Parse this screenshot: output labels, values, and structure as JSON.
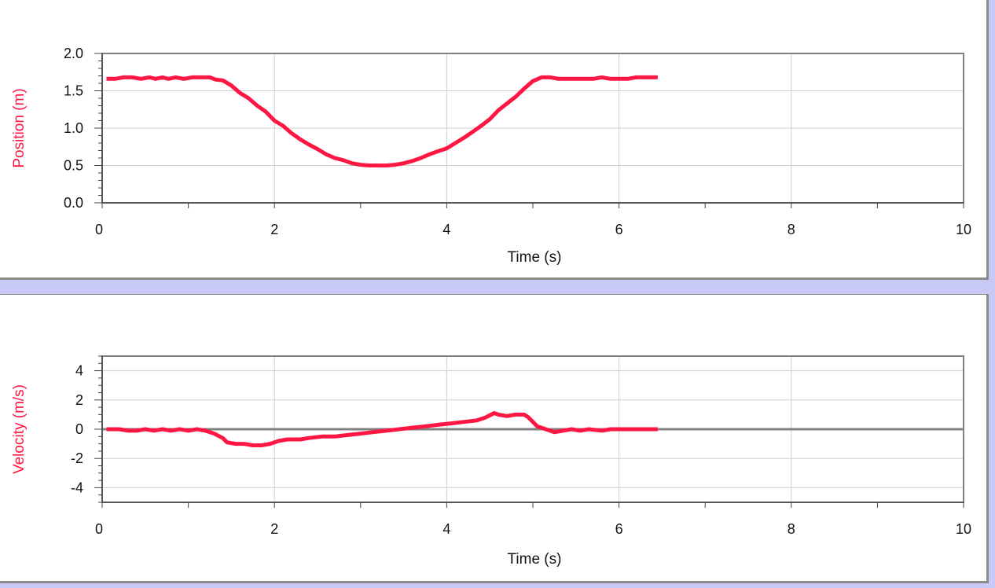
{
  "colors": {
    "series": "#ff1744",
    "grid": "#cfcfcf",
    "frame": "#808080",
    "background": "#c9c9f5"
  },
  "chart_data": [
    {
      "type": "line",
      "xlabel": "Time (s)",
      "ylabel": "Position (m)",
      "xlim": [
        0,
        10
      ],
      "ylim": [
        0,
        2
      ],
      "x_ticks": [
        "0",
        "2",
        "4",
        "6",
        "8",
        "10"
      ],
      "y_ticks": [
        "0.0",
        "0.5",
        "1.0",
        "1.5",
        "2.0"
      ],
      "grid": true,
      "series": [
        {
          "points": [
            [
              0.05,
              1.66
            ],
            [
              0.15,
              1.66
            ],
            [
              0.25,
              1.68
            ],
            [
              0.35,
              1.68
            ],
            [
              0.45,
              1.66
            ],
            [
              0.55,
              1.68
            ],
            [
              0.62,
              1.66
            ],
            [
              0.7,
              1.68
            ],
            [
              0.77,
              1.66
            ],
            [
              0.85,
              1.68
            ],
            [
              0.95,
              1.66
            ],
            [
              1.05,
              1.68
            ],
            [
              1.15,
              1.68
            ],
            [
              1.25,
              1.68
            ],
            [
              1.32,
              1.65
            ],
            [
              1.4,
              1.64
            ],
            [
              1.5,
              1.57
            ],
            [
              1.6,
              1.47
            ],
            [
              1.7,
              1.4
            ],
            [
              1.8,
              1.3
            ],
            [
              1.9,
              1.22
            ],
            [
              2.0,
              1.1
            ],
            [
              2.1,
              1.03
            ],
            [
              2.2,
              0.93
            ],
            [
              2.3,
              0.85
            ],
            [
              2.4,
              0.78
            ],
            [
              2.5,
              0.72
            ],
            [
              2.6,
              0.65
            ],
            [
              2.7,
              0.6
            ],
            [
              2.8,
              0.57
            ],
            [
              2.9,
              0.53
            ],
            [
              3.0,
              0.51
            ],
            [
              3.1,
              0.5
            ],
            [
              3.2,
              0.5
            ],
            [
              3.3,
              0.5
            ],
            [
              3.4,
              0.51
            ],
            [
              3.5,
              0.53
            ],
            [
              3.6,
              0.56
            ],
            [
              3.7,
              0.6
            ],
            [
              3.8,
              0.65
            ],
            [
              3.9,
              0.69
            ],
            [
              4.0,
              0.73
            ],
            [
              4.1,
              0.8
            ],
            [
              4.2,
              0.87
            ],
            [
              4.3,
              0.95
            ],
            [
              4.4,
              1.03
            ],
            [
              4.5,
              1.12
            ],
            [
              4.6,
              1.24
            ],
            [
              4.7,
              1.33
            ],
            [
              4.8,
              1.42
            ],
            [
              4.9,
              1.53
            ],
            [
              5.0,
              1.63
            ],
            [
              5.1,
              1.68
            ],
            [
              5.2,
              1.68
            ],
            [
              5.3,
              1.66
            ],
            [
              5.4,
              1.66
            ],
            [
              5.5,
              1.66
            ],
            [
              5.6,
              1.66
            ],
            [
              5.7,
              1.66
            ],
            [
              5.8,
              1.68
            ],
            [
              5.9,
              1.66
            ],
            [
              6.0,
              1.66
            ],
            [
              6.1,
              1.66
            ],
            [
              6.2,
              1.68
            ],
            [
              6.3,
              1.68
            ],
            [
              6.4,
              1.68
            ],
            [
              6.45,
              1.68
            ]
          ]
        }
      ]
    },
    {
      "type": "line",
      "xlabel": "Time (s)",
      "ylabel": "Velocity (m/s)",
      "xlim": [
        0,
        10
      ],
      "ylim": [
        -5,
        5
      ],
      "x_ticks": [
        "0",
        "2",
        "4",
        "6",
        "8",
        "10"
      ],
      "y_ticks": [
        "-4",
        "-2",
        "0",
        "2",
        "4"
      ],
      "grid": true,
      "series": [
        {
          "points": [
            [
              0.05,
              0.0
            ],
            [
              0.2,
              0.0
            ],
            [
              0.3,
              -0.1
            ],
            [
              0.4,
              -0.1
            ],
            [
              0.5,
              0.0
            ],
            [
              0.6,
              -0.1
            ],
            [
              0.7,
              0.0
            ],
            [
              0.8,
              -0.1
            ],
            [
              0.9,
              0.0
            ],
            [
              1.0,
              -0.1
            ],
            [
              1.1,
              0.0
            ],
            [
              1.2,
              -0.1
            ],
            [
              1.3,
              -0.3
            ],
            [
              1.4,
              -0.6
            ],
            [
              1.45,
              -0.9
            ],
            [
              1.55,
              -1.0
            ],
            [
              1.65,
              -1.0
            ],
            [
              1.75,
              -1.1
            ],
            [
              1.85,
              -1.1
            ],
            [
              1.95,
              -1.0
            ],
            [
              2.05,
              -0.8
            ],
            [
              2.15,
              -0.7
            ],
            [
              2.3,
              -0.7
            ],
            [
              2.4,
              -0.6
            ],
            [
              2.55,
              -0.5
            ],
            [
              2.7,
              -0.5
            ],
            [
              2.85,
              -0.4
            ],
            [
              3.0,
              -0.3
            ],
            [
              3.15,
              -0.2
            ],
            [
              3.3,
              -0.1
            ],
            [
              3.45,
              0.0
            ],
            [
              3.6,
              0.1
            ],
            [
              3.75,
              0.2
            ],
            [
              3.9,
              0.3
            ],
            [
              4.05,
              0.4
            ],
            [
              4.2,
              0.5
            ],
            [
              4.35,
              0.6
            ],
            [
              4.45,
              0.8
            ],
            [
              4.55,
              1.1
            ],
            [
              4.6,
              1.0
            ],
            [
              4.7,
              0.9
            ],
            [
              4.8,
              1.0
            ],
            [
              4.9,
              1.0
            ],
            [
              4.95,
              0.8
            ],
            [
              5.05,
              0.2
            ],
            [
              5.15,
              0.0
            ],
            [
              5.25,
              -0.2
            ],
            [
              5.35,
              -0.1
            ],
            [
              5.45,
              0.0
            ],
            [
              5.55,
              -0.1
            ],
            [
              5.65,
              0.0
            ],
            [
              5.8,
              -0.1
            ],
            [
              5.9,
              0.0
            ],
            [
              6.1,
              0.0
            ],
            [
              6.3,
              0.0
            ],
            [
              6.45,
              0.0
            ]
          ]
        }
      ]
    }
  ]
}
